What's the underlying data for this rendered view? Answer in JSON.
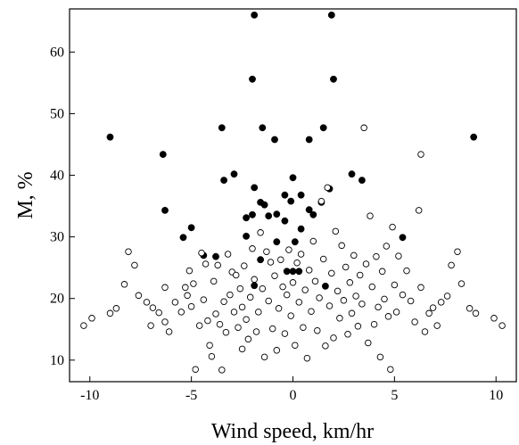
{
  "chart_data": {
    "type": "scatter",
    "title": "",
    "xlabel": "Wind speed, km/hr",
    "ylabel": "M, %",
    "xlim": [
      -11,
      11
    ],
    "ylim": [
      6.5,
      67
    ],
    "x_ticks": [
      -10,
      -5,
      0,
      5,
      10
    ],
    "x_tick_labels": [
      "-10",
      "-5",
      "0",
      "5",
      "10"
    ],
    "y_ticks": [
      10,
      20,
      30,
      40,
      50,
      60
    ],
    "y_tick_labels": [
      "10",
      "20",
      "30",
      "40",
      "50",
      "60"
    ],
    "grid": false,
    "legend": "none",
    "marker_colors": {
      "filled": "#000000",
      "open_fill": "#ffffff",
      "stroke": "#000000"
    },
    "series": [
      {
        "marker": "filled-circle",
        "points": [
          [
            -1.9,
            66.0
          ],
          [
            1.9,
            66.0
          ],
          [
            -2.0,
            55.6
          ],
          [
            2.0,
            55.6
          ],
          [
            -9.0,
            46.2
          ],
          [
            8.9,
            46.2
          ],
          [
            -3.5,
            47.7
          ],
          [
            -1.5,
            47.7
          ],
          [
            1.5,
            47.7
          ],
          [
            -0.9,
            45.8
          ],
          [
            0.8,
            45.8
          ],
          [
            -6.4,
            43.4
          ],
          [
            -2.9,
            40.2
          ],
          [
            2.9,
            40.2
          ],
          [
            -3.4,
            39.2
          ],
          [
            3.4,
            39.2
          ],
          [
            0.0,
            39.6
          ],
          [
            -1.9,
            38.0
          ],
          [
            1.8,
            37.8
          ],
          [
            -1.6,
            35.6
          ],
          [
            -1.4,
            35.2
          ],
          [
            -0.4,
            36.8
          ],
          [
            0.4,
            36.8
          ],
          [
            1.4,
            35.6
          ],
          [
            0.8,
            34.4
          ],
          [
            -0.1,
            35.8
          ],
          [
            -6.3,
            34.3
          ],
          [
            -2.0,
            33.6
          ],
          [
            -1.2,
            33.4
          ],
          [
            -0.8,
            33.7
          ],
          [
            1.0,
            33.6
          ],
          [
            -2.3,
            33.1
          ],
          [
            -0.4,
            32.6
          ],
          [
            0.4,
            31.3
          ],
          [
            -5.0,
            31.5
          ],
          [
            -2.3,
            30.1
          ],
          [
            -0.8,
            29.2
          ],
          [
            0.1,
            29.2
          ],
          [
            -5.4,
            29.9
          ],
          [
            5.4,
            29.9
          ],
          [
            -4.4,
            27.0
          ],
          [
            -3.8,
            26.8
          ],
          [
            -1.6,
            26.3
          ],
          [
            -0.3,
            24.4
          ],
          [
            0.0,
            24.4
          ],
          [
            0.3,
            24.4
          ],
          [
            -1.9,
            22.1
          ],
          [
            1.6,
            22.0
          ]
        ]
      },
      {
        "marker": "open-circle",
        "points": [
          [
            -10.3,
            15.6
          ],
          [
            -9.9,
            16.8
          ],
          [
            -9.0,
            17.6
          ],
          [
            -8.7,
            18.4
          ],
          [
            -8.3,
            22.3
          ],
          [
            -8.1,
            27.6
          ],
          [
            -7.8,
            25.4
          ],
          [
            -7.6,
            20.5
          ],
          [
            -7.2,
            19.4
          ],
          [
            -7.0,
            15.6
          ],
          [
            -6.9,
            18.5
          ],
          [
            -6.6,
            17.7
          ],
          [
            -6.3,
            21.8
          ],
          [
            -6.3,
            16.2
          ],
          [
            -6.1,
            14.6
          ],
          [
            -5.8,
            19.4
          ],
          [
            -5.5,
            17.8
          ],
          [
            -5.3,
            21.8
          ],
          [
            -5.2,
            20.5
          ],
          [
            -5.1,
            24.5
          ],
          [
            -5.0,
            18.7
          ],
          [
            -4.9,
            22.4
          ],
          [
            -4.8,
            8.5
          ],
          [
            -4.6,
            15.6
          ],
          [
            -4.5,
            27.4
          ],
          [
            -4.4,
            19.8
          ],
          [
            -4.3,
            25.6
          ],
          [
            -4.2,
            16.4
          ],
          [
            -4.1,
            12.4
          ],
          [
            -4.0,
            10.6
          ],
          [
            -3.9,
            22.8
          ],
          [
            -3.8,
            17.5
          ],
          [
            -3.7,
            25.4
          ],
          [
            -3.6,
            15.8
          ],
          [
            -3.5,
            8.4
          ],
          [
            -3.4,
            19.5
          ],
          [
            -3.3,
            14.5
          ],
          [
            -3.2,
            27.2
          ],
          [
            -3.1,
            20.6
          ],
          [
            -3.0,
            24.3
          ],
          [
            -2.9,
            17.8
          ],
          [
            -2.8,
            23.8
          ],
          [
            -2.7,
            15.3
          ],
          [
            -2.6,
            21.6
          ],
          [
            -2.5,
            11.8
          ],
          [
            -2.5,
            18.6
          ],
          [
            -2.4,
            25.3
          ],
          [
            -2.3,
            16.6
          ],
          [
            -2.2,
            13.4
          ],
          [
            -2.1,
            20.2
          ],
          [
            -2.0,
            28.1
          ],
          [
            -1.9,
            23.1
          ],
          [
            -1.8,
            14.6
          ],
          [
            -1.7,
            17.8
          ],
          [
            -1.6,
            30.7
          ],
          [
            -1.5,
            21.6
          ],
          [
            -1.4,
            10.5
          ],
          [
            -1.3,
            27.6
          ],
          [
            -1.2,
            19.6
          ],
          [
            -1.1,
            25.9
          ],
          [
            -1.0,
            15.1
          ],
          [
            -0.9,
            23.7
          ],
          [
            -0.8,
            11.6
          ],
          [
            -0.7,
            18.4
          ],
          [
            -0.6,
            26.3
          ],
          [
            -0.5,
            21.9
          ],
          [
            -0.4,
            14.3
          ],
          [
            -0.3,
            20.6
          ],
          [
            -0.2,
            27.9
          ],
          [
            -0.1,
            17.2
          ],
          [
            0.0,
            22.6
          ],
          [
            0.1,
            12.4
          ],
          [
            0.2,
            25.8
          ],
          [
            0.3,
            19.4
          ],
          [
            0.4,
            27.2
          ],
          [
            0.5,
            15.3
          ],
          [
            0.6,
            21.4
          ],
          [
            0.7,
            10.3
          ],
          [
            0.8,
            24.6
          ],
          [
            0.9,
            17.9
          ],
          [
            1.0,
            29.3
          ],
          [
            1.1,
            22.8
          ],
          [
            1.2,
            14.8
          ],
          [
            1.3,
            20.1
          ],
          [
            1.4,
            35.8
          ],
          [
            1.5,
            26.4
          ],
          [
            1.6,
            12.3
          ],
          [
            1.7,
            38.0
          ],
          [
            1.8,
            18.8
          ],
          [
            1.9,
            24.1
          ],
          [
            2.0,
            13.6
          ],
          [
            2.1,
            30.9
          ],
          [
            2.2,
            21.2
          ],
          [
            2.3,
            16.8
          ],
          [
            2.4,
            28.6
          ],
          [
            2.5,
            19.7
          ],
          [
            2.6,
            25.1
          ],
          [
            2.7,
            14.2
          ],
          [
            2.8,
            22.6
          ],
          [
            2.9,
            17.6
          ],
          [
            3.0,
            27.0
          ],
          [
            3.1,
            20.4
          ],
          [
            3.2,
            15.5
          ],
          [
            3.3,
            23.8
          ],
          [
            3.4,
            19.1
          ],
          [
            3.5,
            47.7
          ],
          [
            3.6,
            25.6
          ],
          [
            3.7,
            12.8
          ],
          [
            3.8,
            33.4
          ],
          [
            3.9,
            21.9
          ],
          [
            4.0,
            15.8
          ],
          [
            4.1,
            26.8
          ],
          [
            4.2,
            18.6
          ],
          [
            4.3,
            10.5
          ],
          [
            4.4,
            24.4
          ],
          [
            4.5,
            19.9
          ],
          [
            4.6,
            28.5
          ],
          [
            4.7,
            17.1
          ],
          [
            4.8,
            8.5
          ],
          [
            4.9,
            31.6
          ],
          [
            5.0,
            22.2
          ],
          [
            5.1,
            17.8
          ],
          [
            5.2,
            26.9
          ],
          [
            5.4,
            20.6
          ],
          [
            5.6,
            24.5
          ],
          [
            5.8,
            19.6
          ],
          [
            6.0,
            16.2
          ],
          [
            6.2,
            34.3
          ],
          [
            6.3,
            43.4
          ],
          [
            6.3,
            21.8
          ],
          [
            6.5,
            14.6
          ],
          [
            6.7,
            17.6
          ],
          [
            6.9,
            18.5
          ],
          [
            7.1,
            15.6
          ],
          [
            7.3,
            19.4
          ],
          [
            7.6,
            20.4
          ],
          [
            7.8,
            25.4
          ],
          [
            8.1,
            27.6
          ],
          [
            8.3,
            22.4
          ],
          [
            8.7,
            18.4
          ],
          [
            9.0,
            17.6
          ],
          [
            9.9,
            16.8
          ],
          [
            10.3,
            15.6
          ]
        ]
      }
    ]
  }
}
